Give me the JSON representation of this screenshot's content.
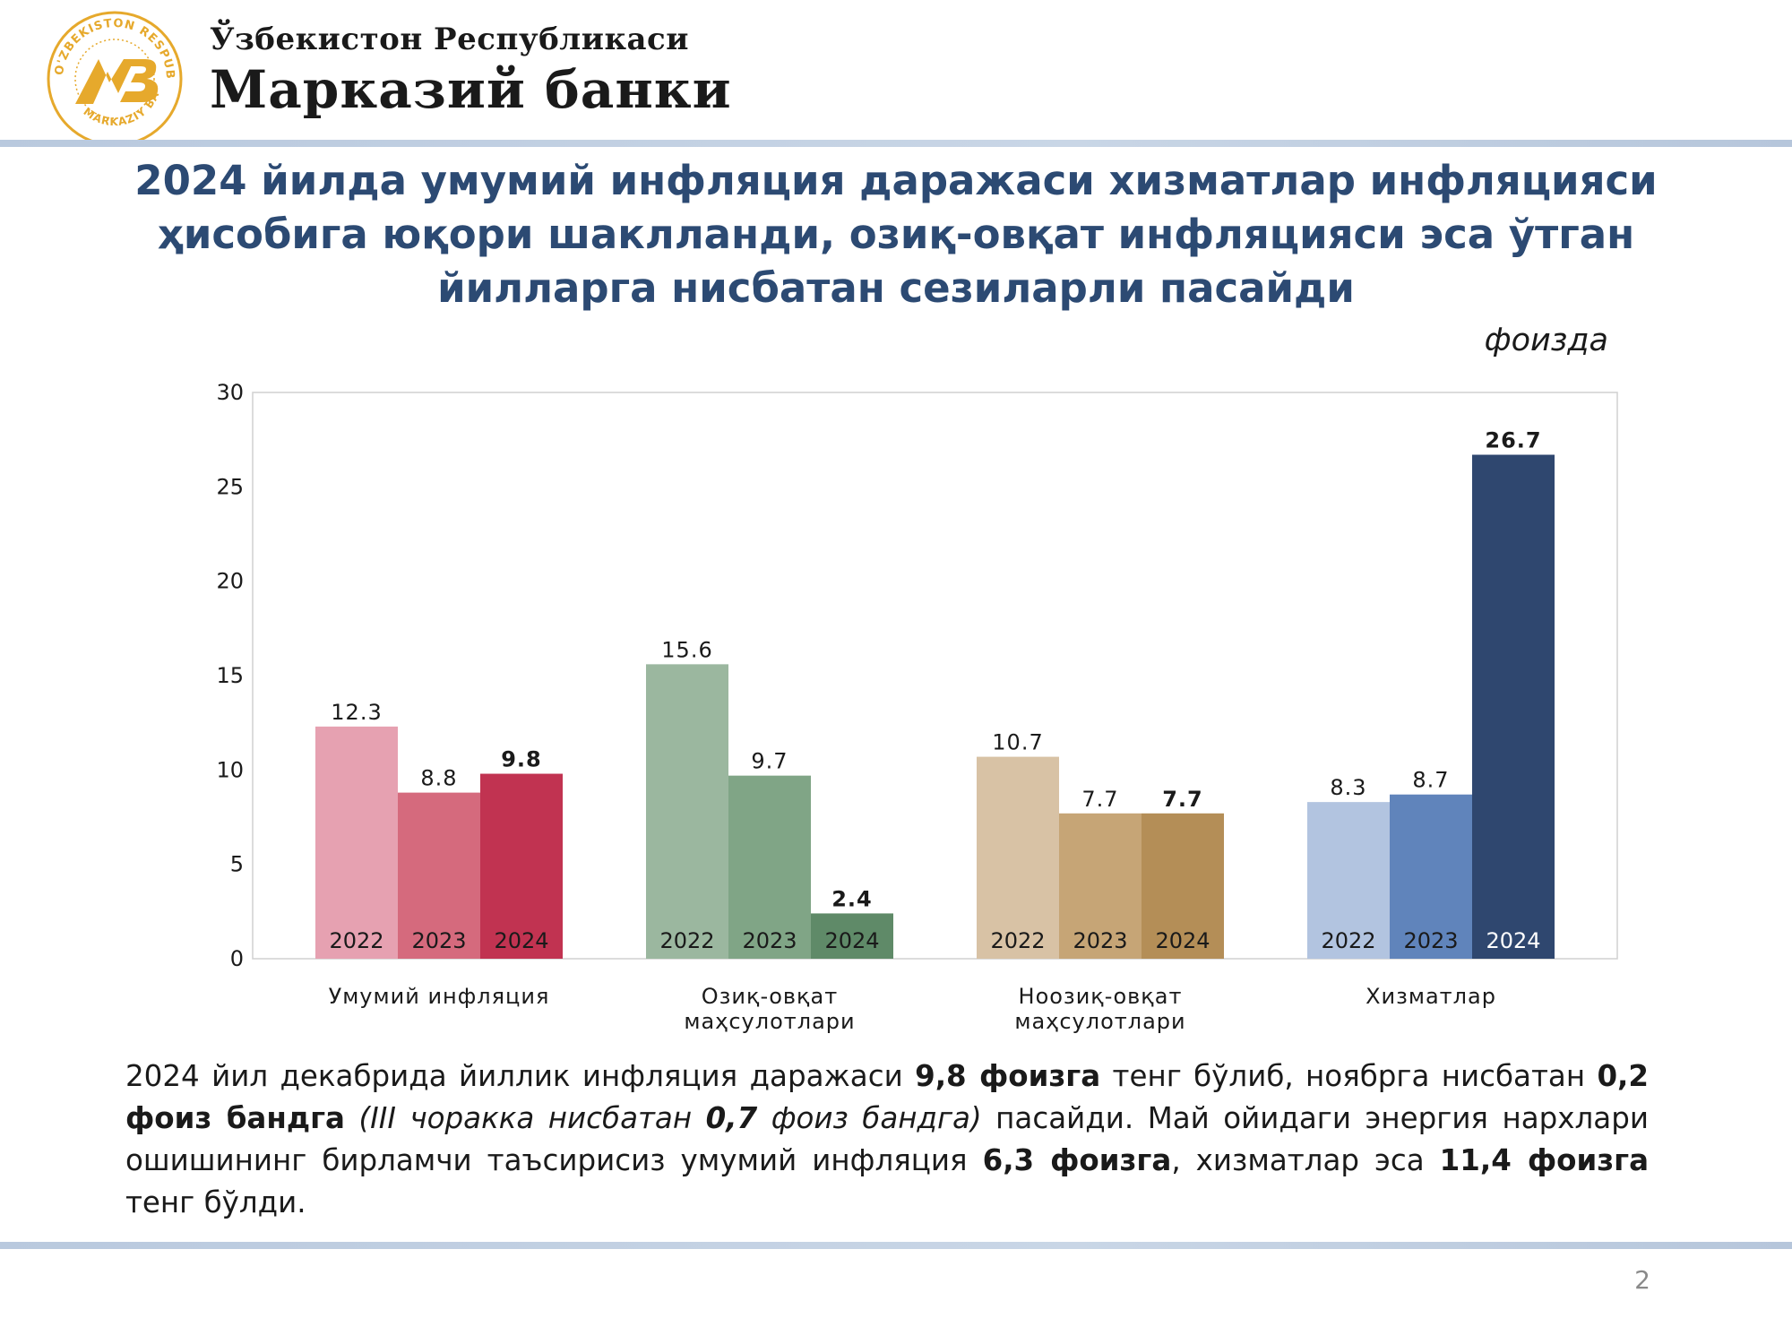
{
  "header": {
    "logo_text_arc": "O'ZBEKISTON RESPUBLIKASI MARKAZIY BANKI",
    "logo_monogram": "MB",
    "title_line1": "Ўзбекистон Республикаси",
    "title_line2": "Марказий банки"
  },
  "slide": {
    "headline": [
      "2024 йилда умумий инфляция даражаси хизматлар инфляцияси",
      "ҳисобига юқори шаклланди, озиқ-овқат инфляцияси эса ўтган",
      "йилларга нисбатан сезиларли пасайди"
    ],
    "unit": "фоизда",
    "page_number": "2"
  },
  "body": {
    "s1": "2024 йил декабрида йиллик инфляция даражаси ",
    "b1": "9,8 фоизга",
    "s2": " тенг бўлиб, ноябрга нисбатан ",
    "b2": "0,2 фоиз бандга",
    "i1": " (III чоракка нисбатан ",
    "bi1": "0,7",
    "i2": " фоиз бандга)",
    "s3": " пасайди. Май ойидаги энергия нархлари ошишининг бирламчи таъсирисиз умумий инфляция ",
    "b3": "6,3 фоизга",
    "s4": ", хизматлар эса ",
    "b4": "11,4 фоизга",
    "s5": " тенг бўлди."
  },
  "chart_data": {
    "type": "bar",
    "ylim": [
      0,
      30
    ],
    "yticks": [
      "0",
      "5",
      "10",
      "15",
      "20",
      "25",
      "30"
    ],
    "grid": false,
    "groups": [
      {
        "label": [
          "Умумий инфляция"
        ],
        "bars": [
          {
            "year": "2022",
            "value": 12.3,
            "label": "12.3",
            "color": "#e6a1b1",
            "bold": false,
            "year_color": "#1a1a1a"
          },
          {
            "year": "2023",
            "value": 8.8,
            "label": "8.8",
            "color": "#d56a7d",
            "bold": false,
            "year_color": "#1a1a1a"
          },
          {
            "year": "2024",
            "value": 9.8,
            "label": "9.8",
            "color": "#c13351",
            "bold": true,
            "year_color": "#1a1a1a"
          }
        ]
      },
      {
        "label": [
          "Озиқ-овқат",
          "маҳсулотлари"
        ],
        "bars": [
          {
            "year": "2022",
            "value": 15.6,
            "label": "15.6",
            "color": "#9bb79f",
            "bold": false,
            "year_color": "#1a1a1a"
          },
          {
            "year": "2023",
            "value": 9.7,
            "label": "9.7",
            "color": "#80a586",
            "bold": false,
            "year_color": "#1a1a1a"
          },
          {
            "year": "2024",
            "value": 2.4,
            "label": "2.4",
            "color": "#5f8a68",
            "bold": true,
            "year_color": "#1a1a1a"
          }
        ]
      },
      {
        "label": [
          "Ноозиқ-овқат",
          "маҳсулотлари"
        ],
        "bars": [
          {
            "year": "2022",
            "value": 10.7,
            "label": "10.7",
            "color": "#d8c2a5",
            "bold": false,
            "year_color": "#1a1a1a"
          },
          {
            "year": "2023",
            "value": 7.7,
            "label": "7.7",
            "color": "#c6a576",
            "bold": false,
            "year_color": "#1a1a1a"
          },
          {
            "year": "2024",
            "value": 7.7,
            "label": "7.7",
            "color": "#b48e57",
            "bold": true,
            "year_color": "#1a1a1a"
          }
        ]
      },
      {
        "label": [
          "Хизматлар"
        ],
        "bars": [
          {
            "year": "2022",
            "value": 8.3,
            "label": "8.3",
            "color": "#b2c4e0",
            "bold": false,
            "year_color": "#1a1a1a"
          },
          {
            "year": "2023",
            "value": 8.7,
            "label": "8.7",
            "color": "#6084bb",
            "bold": false,
            "year_color": "#1a1a1a"
          },
          {
            "year": "2024",
            "value": 26.7,
            "label": "26.7",
            "color": "#2f476f",
            "bold": true,
            "year_color": "#ffffff"
          }
        ]
      }
    ]
  },
  "colors": {
    "headline": "#2c4a73",
    "logo_gold": "#e6a92c"
  }
}
